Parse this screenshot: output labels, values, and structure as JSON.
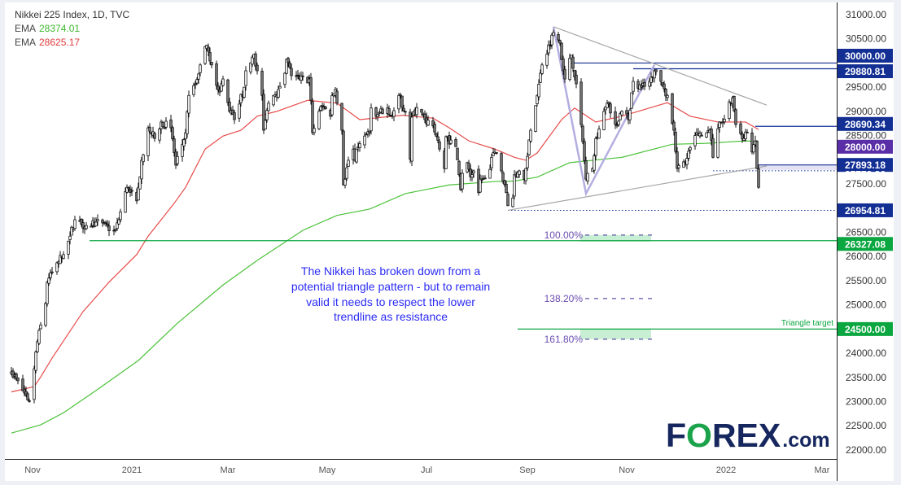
{
  "legend": {
    "title": "Nikkei 225 Index, 1D, TVC",
    "ema_label": "EMA",
    "ema_slow_value": "28374.01",
    "ema_fast_value": "28625.17"
  },
  "colors": {
    "ema_fast": "#e84b4b",
    "ema_slow": "#4cc23a",
    "level_blue": "#132f94",
    "level_green": "#0aa640",
    "label_purple": "#5a2ea6",
    "zigzag": "#b3aee0",
    "trendline": "#a6a6a6",
    "fib": "#3b2a9a",
    "fib_box": "#c8eed3",
    "note_text": "#2b2bf5",
    "candle_up": "#ffffff",
    "candle_down": "#7a7a7a",
    "logo_navy": "#15275e",
    "logo_green": "#1aa34a"
  },
  "chart_data": {
    "type": "candlestick",
    "ylim": [
      21800,
      31300
    ],
    "y_ticks": [
      "31000.00",
      "30500.00",
      "29500.00",
      "29000.00",
      "28500.00",
      "27500.00",
      "26500.00",
      "26000.00",
      "25500.00",
      "25000.00",
      "24000.00",
      "23500.00",
      "23000.00",
      "22500.00",
      "22000.00"
    ],
    "x_ticks": [
      {
        "label": "Nov",
        "date": "2020-11-01"
      },
      {
        "label": "2021",
        "date": "2021-01-01"
      },
      {
        "label": "Mar",
        "date": "2021-03-01"
      },
      {
        "label": "May",
        "date": "2021-05-01"
      },
      {
        "label": "Jul",
        "date": "2021-07-01"
      },
      {
        "label": "Sep",
        "date": "2021-09-01"
      },
      {
        "label": "Nov",
        "date": "2021-11-01"
      },
      {
        "label": "2022",
        "date": "2022-01-01"
      },
      {
        "label": "Mar",
        "date": "2022-03-01"
      }
    ],
    "approx_closes": [
      [
        "2020-10-19",
        23615
      ],
      [
        "2020-10-30",
        23010
      ],
      [
        "2020-11-02",
        23680
      ],
      [
        "2020-11-04",
        24240
      ],
      [
        "2020-11-09",
        25030
      ],
      [
        "2020-11-10",
        25465
      ],
      [
        "2020-11-16",
        25870
      ],
      [
        "2020-11-20",
        26040
      ],
      [
        "2020-11-24",
        26420
      ],
      [
        "2020-11-27",
        26760
      ],
      [
        "2020-12-04",
        26640
      ],
      [
        "2020-12-10",
        26710
      ],
      [
        "2020-12-21",
        26540
      ],
      [
        "2020-12-24",
        26760
      ],
      [
        "2020-12-29",
        27430
      ],
      [
        "2021-01-04",
        27150
      ],
      [
        "2021-01-05",
        27430
      ],
      [
        "2021-01-07",
        27990
      ],
      [
        "2021-01-11",
        28660
      ],
      [
        "2021-01-15",
        28440
      ],
      [
        "2021-01-19",
        28780
      ],
      [
        "2021-01-25",
        28660
      ],
      [
        "2021-01-28",
        27890
      ],
      [
        "2021-02-01",
        28320
      ],
      [
        "2021-02-03",
        28560
      ],
      [
        "2021-02-05",
        29330
      ],
      [
        "2021-02-09",
        29570
      ],
      [
        "2021-02-12",
        29960
      ],
      [
        "2021-02-15",
        30340
      ],
      [
        "2021-02-17",
        30240
      ],
      [
        "2021-02-19",
        29960
      ],
      [
        "2021-02-24",
        29400
      ],
      [
        "2021-02-26",
        29670
      ],
      [
        "2021-03-02",
        29000
      ],
      [
        "2021-03-05",
        28830
      ],
      [
        "2021-03-11",
        29500
      ],
      [
        "2021-03-12",
        29840
      ],
      [
        "2021-03-17",
        30180
      ],
      [
        "2021-03-19",
        29840
      ],
      [
        "2021-03-22",
        29330
      ],
      [
        "2021-03-23",
        28610
      ],
      [
        "2021-03-26",
        29170
      ],
      [
        "2021-03-29",
        29330
      ],
      [
        "2021-04-01",
        29450
      ],
      [
        "2021-04-05",
        29790
      ],
      [
        "2021-04-06",
        30080
      ],
      [
        "2021-04-09",
        29740
      ],
      [
        "2021-04-14",
        29670
      ],
      [
        "2021-04-20",
        29670
      ],
      [
        "2021-04-21",
        29230
      ],
      [
        "2021-04-22",
        28560
      ],
      [
        "2021-04-26",
        29000
      ],
      [
        "2021-04-28",
        29120
      ],
      [
        "2021-05-03",
        28900
      ],
      [
        "2021-05-04",
        29330
      ],
      [
        "2021-05-06",
        29450
      ],
      [
        "2021-05-07",
        29170
      ],
      [
        "2021-05-10",
        28610
      ],
      [
        "2021-05-11",
        27480
      ],
      [
        "2021-05-14",
        27990
      ],
      [
        "2021-05-17",
        28220
      ],
      [
        "2021-05-18",
        27990
      ],
      [
        "2021-05-20",
        28270
      ],
      [
        "2021-05-24",
        28490
      ],
      [
        "2021-05-27",
        28560
      ],
      [
        "2021-05-28",
        29070
      ],
      [
        "2021-05-31",
        28900
      ],
      [
        "2021-06-07",
        29070
      ],
      [
        "2021-06-10",
        28900
      ],
      [
        "2021-06-14",
        29330
      ],
      [
        "2021-06-18",
        29000
      ],
      [
        "2021-06-21",
        28010
      ],
      [
        "2021-06-22",
        28880
      ],
      [
        "2021-06-25",
        29080
      ],
      [
        "2021-06-30",
        28830
      ],
      [
        "2021-07-05",
        28700
      ],
      [
        "2021-07-09",
        28220
      ],
      [
        "2021-07-12",
        27820
      ],
      [
        "2021-07-13",
        28480
      ],
      [
        "2021-07-19",
        28270
      ],
      [
        "2021-07-20",
        28000
      ],
      [
        "2021-07-22",
        27380
      ],
      [
        "2021-07-23",
        27720
      ],
      [
        "2021-07-26",
        27940
      ],
      [
        "2021-07-28",
        27650
      ],
      [
        "2021-07-30",
        27770
      ],
      [
        "2021-08-02",
        27320
      ],
      [
        "2021-08-03",
        27600
      ],
      [
        "2021-08-05",
        27600
      ],
      [
        "2021-08-09",
        27800
      ],
      [
        "2021-08-10",
        28050
      ],
      [
        "2021-08-13",
        28140
      ],
      [
        "2021-08-16",
        27770
      ],
      [
        "2021-08-17",
        27550
      ],
      [
        "2021-08-19",
        27320
      ],
      [
        "2021-08-20",
        27050
      ],
      [
        "2021-08-23",
        27210
      ],
      [
        "2021-08-24",
        27690
      ],
      [
        "2021-08-27",
        27770
      ],
      [
        "2021-08-30",
        27600
      ],
      [
        "2021-08-31",
        27820
      ],
      [
        "2021-09-01",
        28070
      ],
      [
        "2021-09-02",
        28410
      ],
      [
        "2021-09-03",
        28610
      ],
      [
        "2021-09-06",
        29120
      ],
      [
        "2021-09-10",
        29960
      ],
      [
        "2021-09-17",
        30630
      ],
      [
        "2021-09-21",
        30410
      ],
      [
        "2021-09-23",
        29840
      ],
      [
        "2021-09-24",
        29670
      ],
      [
        "2021-09-28",
        30160
      ],
      [
        "2021-10-01",
        29570
      ],
      [
        "2021-10-04",
        28730
      ],
      [
        "2021-10-07",
        27600
      ],
      [
        "2021-10-11",
        27820
      ],
      [
        "2021-10-13",
        28440
      ],
      [
        "2021-10-18",
        29000
      ],
      [
        "2021-10-20",
        29170
      ],
      [
        "2021-10-25",
        28730
      ],
      [
        "2021-10-29",
        29000
      ],
      [
        "2021-11-02",
        28830
      ],
      [
        "2021-11-05",
        29620
      ],
      [
        "2021-11-10",
        29500
      ],
      [
        "2021-11-15",
        29620
      ],
      [
        "2021-11-18",
        29840
      ],
      [
        "2021-11-22",
        29620
      ],
      [
        "2021-11-26",
        29330
      ],
      [
        "2021-11-30",
        28610
      ],
      [
        "2021-12-02",
        27820
      ],
      [
        "2021-12-07",
        27940
      ],
      [
        "2021-12-13",
        28500
      ],
      [
        "2021-12-17",
        28500
      ],
      [
        "2021-12-22",
        28610
      ],
      [
        "2021-12-24",
        28050
      ],
      [
        "2021-12-28",
        28780
      ],
      [
        "2021-12-30",
        28780
      ],
      [
        "2022-01-05",
        29280
      ],
      [
        "2022-01-07",
        28730
      ],
      [
        "2022-01-12",
        28440
      ],
      [
        "2022-01-14",
        28560
      ],
      [
        "2022-01-17",
        28160
      ],
      [
        "2022-01-19",
        28390
      ],
      [
        "2022-01-20",
        27820
      ],
      [
        "2022-01-21",
        27430
      ]
    ],
    "ema_fast": [
      [
        "2020-10-19",
        23200
      ],
      [
        "2020-11-02",
        23310
      ],
      [
        "2020-11-06",
        23510
      ],
      [
        "2020-11-13",
        23900
      ],
      [
        "2020-12-02",
        24860
      ],
      [
        "2020-12-18",
        25470
      ],
      [
        "2021-01-04",
        26040
      ],
      [
        "2021-01-11",
        26420
      ],
      [
        "2021-01-27",
        27100
      ],
      [
        "2021-02-03",
        27430
      ],
      [
        "2021-02-15",
        28220
      ],
      [
        "2021-02-26",
        28490
      ],
      [
        "2021-03-09",
        28610
      ],
      [
        "2021-03-19",
        28900
      ],
      [
        "2021-03-31",
        29000
      ],
      [
        "2021-04-19",
        29230
      ],
      [
        "2021-05-07",
        29170
      ],
      [
        "2021-05-21",
        28830
      ],
      [
        "2021-06-16",
        28920
      ],
      [
        "2021-07-05",
        28860
      ],
      [
        "2021-07-15",
        28660
      ],
      [
        "2021-07-27",
        28390
      ],
      [
        "2021-08-12",
        28220
      ],
      [
        "2021-08-24",
        28050
      ],
      [
        "2021-08-31",
        27990
      ],
      [
        "2021-09-07",
        28140
      ],
      [
        "2021-09-22",
        28830
      ],
      [
        "2021-09-30",
        29070
      ],
      [
        "2021-10-13",
        28780
      ],
      [
        "2021-10-29",
        28900
      ],
      [
        "2021-11-15",
        29070
      ],
      [
        "2021-11-26",
        29180
      ],
      [
        "2021-12-10",
        28900
      ],
      [
        "2021-12-27",
        28780
      ],
      [
        "2022-01-13",
        28780
      ],
      [
        "2022-01-21",
        28625.17
      ]
    ],
    "ema_slow": [
      [
        "2020-10-19",
        22350
      ],
      [
        "2020-11-06",
        22520
      ],
      [
        "2020-11-20",
        22770
      ],
      [
        "2020-12-10",
        23230
      ],
      [
        "2021-01-05",
        23850
      ],
      [
        "2021-01-29",
        24620
      ],
      [
        "2021-02-26",
        25410
      ],
      [
        "2021-03-19",
        25920
      ],
      [
        "2021-04-16",
        26540
      ],
      [
        "2021-05-07",
        26850
      ],
      [
        "2021-05-27",
        26980
      ],
      [
        "2021-06-18",
        27300
      ],
      [
        "2021-07-15",
        27480
      ],
      [
        "2021-08-12",
        27550
      ],
      [
        "2021-08-24",
        27560
      ],
      [
        "2021-09-07",
        27640
      ],
      [
        "2021-09-27",
        27940
      ],
      [
        "2021-10-29",
        28050
      ],
      [
        "2021-11-29",
        28320
      ],
      [
        "2021-12-20",
        28340
      ],
      [
        "2022-01-13",
        28390
      ],
      [
        "2022-01-21",
        28374.01
      ]
    ],
    "price_labels": [
      {
        "text": "30000.00",
        "value": 30000,
        "kind": "blue"
      },
      {
        "text": "29880.81",
        "value": 29880.81,
        "kind": "blue"
      },
      {
        "text": "28690.34",
        "value": 28690.34,
        "kind": "blue"
      },
      {
        "text": "28000.00",
        "value": 28000,
        "kind": "purple"
      },
      {
        "text": "27893.18",
        "value": 27893.18,
        "kind": "blue"
      },
      {
        "text": "27772.86",
        "value": 27772.86,
        "kind": "plain"
      },
      {
        "text": "26954.81",
        "value": 26954.81,
        "kind": "blue"
      },
      {
        "text": "26327.08",
        "value": 26327.08,
        "kind": "green"
      },
      {
        "text": "24500.00",
        "value": 24500,
        "kind": "green"
      }
    ],
    "drawings": {
      "upper_trendline": [
        [
          "2021-09-17",
          30750
        ],
        [
          "2022-01-26",
          29130
        ]
      ],
      "lower_trendline": [
        [
          "2021-08-20",
          26954.81
        ],
        [
          "2022-01-26",
          27871
        ]
      ],
      "zigzag": [
        [
          "2021-09-17",
          30750
        ],
        [
          "2021-10-07",
          27300
        ],
        [
          "2021-11-18",
          29960
        ]
      ],
      "blue_levels": [
        {
          "value": 30000,
          "from": "2021-09-28"
        },
        {
          "value": 29880.81,
          "from": "2021-11-05"
        },
        {
          "value": 28690.34,
          "from": "2022-01-19"
        },
        {
          "value": 27893.18,
          "from": "2022-01-21"
        }
      ],
      "shaded_zone": {
        "from": "2022-01-21",
        "top": 27893.18,
        "bottom": 27790
      },
      "dotted_levels": [
        {
          "value": 27772.86,
          "from": "2021-12-24"
        },
        {
          "value": 26954.81,
          "from": "2021-08-20"
        }
      ],
      "green_levels": [
        {
          "value": 26327.08,
          "from": "2020-12-06"
        },
        {
          "value": 24500,
          "from": "2021-08-26"
        }
      ],
      "triangle_target_label": "Triangle target"
    },
    "fib_levels": [
      {
        "label": "100.00%",
        "value": 26442,
        "box": [
          26442,
          26307
        ]
      },
      {
        "label": "138.20%",
        "value": 25130
      },
      {
        "label": "161.80%",
        "value": 24290,
        "box": [
          24510,
          24290
        ]
      }
    ],
    "fib_range": [
      "2021-10-05",
      "2021-11-16"
    ]
  },
  "annotation": {
    "lines": [
      "The Nikkei has broken down from a",
      "potential triangle pattern - but to remain",
      "valid it needs to respect the lower",
      "trendline as resistance"
    ]
  },
  "logo": {
    "f": "F",
    "o": "O",
    "rex": "REX",
    "com": ".com"
  }
}
